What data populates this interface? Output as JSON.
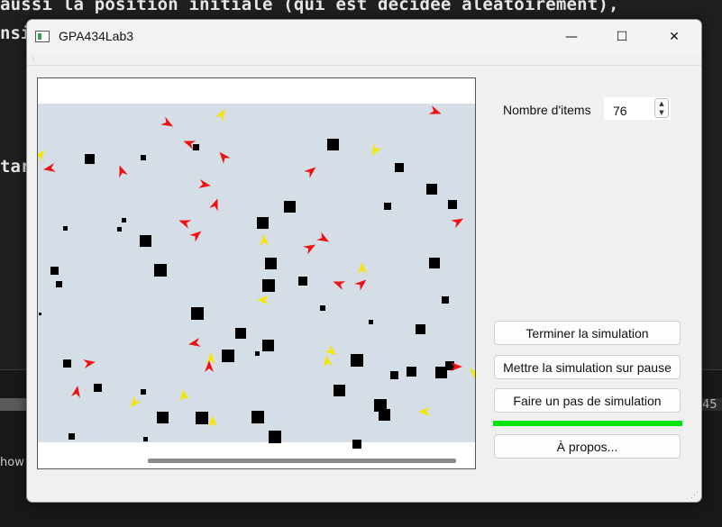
{
  "background": {
    "line1": "aussi la position initiale (qui est décidée aléatoirement),",
    "line2_frag": "nsi",
    "frag_tar": "tar",
    "panel_number": "45",
    "panel_word": "how"
  },
  "window": {
    "title": "GPA434Lab3",
    "minimize_glyph": "—",
    "maximize_glyph": "☐",
    "close_glyph": "✕"
  },
  "controls": {
    "items_label": "Nombre d'items",
    "items_value": "76",
    "spin_up": "▲",
    "spin_down": "▼",
    "stop_button": "Terminer la simulation",
    "pause_button": "Mettre la simulation sur pause",
    "step_button": "Faire un pas de simulation",
    "about_button": "À propos...",
    "progress": 1.0,
    "progress_color": "#06e30c"
  },
  "scene": {
    "background_color": "#d5dde7",
    "obstacle_color": "#000000",
    "red_agent_color": "#ee1111",
    "yellow_agent_color": "#f5e600"
  }
}
